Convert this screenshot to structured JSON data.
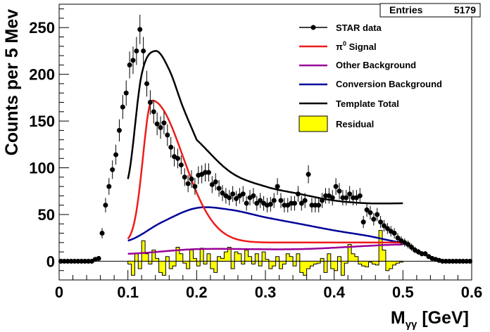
{
  "chart_data": {
    "type": "line",
    "title": "",
    "xlabel": "M",
    "xlabel_sub": "γγ",
    "xlabel_unit": " [GeV]",
    "ylabel": "Counts per 5 Mev",
    "xlim": [
      0,
      0.6
    ],
    "ylim": [
      -20,
      275
    ],
    "x_ticks": [
      0,
      0.1,
      0.2,
      0.3,
      0.4,
      0.5,
      0.6
    ],
    "x_tick_labels": [
      "0",
      "0.1",
      "0.2",
      "0.3",
      "0.4",
      "0.5",
      "0.6"
    ],
    "y_ticks": [
      0,
      50,
      100,
      150,
      200,
      250
    ],
    "y_tick_labels": [
      "0",
      "50",
      "100",
      "150",
      "200",
      "250"
    ],
    "grid": false,
    "legend_position": "top-right",
    "stats": {
      "label": "Entries",
      "value": "5179"
    },
    "legend": [
      {
        "label": "STAR data",
        "kind": "marker",
        "color": "#000000"
      },
      {
        "label": "π",
        "sup": "0",
        "suffix": " Signal",
        "kind": "line",
        "color": "#ee1c1c"
      },
      {
        "label": "Other Background",
        "kind": "line",
        "color": "#990099"
      },
      {
        "label": "Conversion Background",
        "kind": "line",
        "color": "#000099"
      },
      {
        "label": "Template Total",
        "kind": "line",
        "color": "#000000"
      },
      {
        "label": "Residual",
        "kind": "fill",
        "color": "#ffff00"
      }
    ],
    "data_points": {
      "name": "STAR data",
      "bin_width": 0.005,
      "x": [
        0.0025,
        0.0075,
        0.0125,
        0.0175,
        0.0225,
        0.0275,
        0.0325,
        0.0375,
        0.0425,
        0.0475,
        0.0525,
        0.0575,
        0.0625,
        0.0675,
        0.0725,
        0.0775,
        0.0825,
        0.0875,
        0.0925,
        0.0975,
        0.1025,
        0.1075,
        0.1125,
        0.1175,
        0.1225,
        0.1275,
        0.1325,
        0.1375,
        0.1425,
        0.1475,
        0.1525,
        0.1575,
        0.1625,
        0.1675,
        0.1725,
        0.1775,
        0.1825,
        0.1875,
        0.1925,
        0.1975,
        0.2025,
        0.2075,
        0.2125,
        0.2175,
        0.2225,
        0.2275,
        0.2325,
        0.2375,
        0.2425,
        0.2475,
        0.2525,
        0.2575,
        0.2625,
        0.2675,
        0.2725,
        0.2775,
        0.2825,
        0.2875,
        0.2925,
        0.2975,
        0.3025,
        0.3075,
        0.3125,
        0.3175,
        0.3225,
        0.3275,
        0.3325,
        0.3375,
        0.3425,
        0.3475,
        0.3525,
        0.3575,
        0.3625,
        0.3675,
        0.3725,
        0.3775,
        0.3825,
        0.3875,
        0.3925,
        0.3975,
        0.4025,
        0.4075,
        0.4125,
        0.4175,
        0.4225,
        0.4275,
        0.4325,
        0.4375,
        0.4425,
        0.4475,
        0.4525,
        0.4575,
        0.4625,
        0.4675,
        0.4725,
        0.4775,
        0.4825,
        0.4875,
        0.4925,
        0.4975,
        0.5025,
        0.5075,
        0.5125,
        0.5175,
        0.5225,
        0.5275,
        0.5325,
        0.5375,
        0.5425,
        0.5475,
        0.5525,
        0.5575,
        0.5625,
        0.5675,
        0.5725,
        0.5775,
        0.5825,
        0.5875,
        0.5925,
        0.5975
      ],
      "y": [
        0,
        0,
        0,
        0,
        0,
        0,
        0,
        0,
        0,
        0,
        2,
        3,
        30,
        60,
        80,
        98,
        114,
        140,
        165,
        180,
        210,
        215,
        225,
        248,
        225,
        190,
        170,
        160,
        147,
        143,
        148,
        135,
        122,
        112,
        110,
        103,
        90,
        83,
        88,
        80,
        92,
        93,
        95,
        95,
        82,
        85,
        78,
        73,
        70,
        68,
        72,
        67,
        70,
        72,
        62,
        68,
        70,
        62,
        65,
        62,
        60,
        61,
        65,
        80,
        65,
        60,
        60,
        62,
        62,
        72,
        62,
        65,
        93,
        60,
        60,
        60,
        65,
        70,
        70,
        68,
        80,
        75,
        68,
        68,
        72,
        68,
        68,
        70,
        42,
        55,
        52,
        45,
        50,
        42,
        38,
        35,
        32,
        30,
        25,
        22,
        20,
        18,
        15,
        12,
        10,
        8,
        8,
        5,
        3,
        2,
        1,
        0,
        0,
        0,
        0,
        0,
        0,
        0,
        0,
        0
      ]
    },
    "signal": {
      "name": "π0 Signal",
      "mu": 0.135,
      "sigma_left": 0.013,
      "sigma_right": 0.045,
      "amplitude": 152,
      "offset": 20,
      "xrange": [
        0.1,
        0.5
      ]
    },
    "other_background": {
      "name": "Other Background",
      "points": [
        [
          0.1,
          8
        ],
        [
          0.2,
          13
        ],
        [
          0.35,
          13
        ],
        [
          0.5,
          18
        ]
      ]
    },
    "conversion_background": {
      "name": "Conversion Background",
      "points": [
        [
          0.1,
          22
        ],
        [
          0.15,
          42
        ],
        [
          0.2,
          57
        ],
        [
          0.25,
          55
        ],
        [
          0.3,
          47
        ],
        [
          0.35,
          40
        ],
        [
          0.4,
          33
        ],
        [
          0.45,
          27
        ],
        [
          0.5,
          20
        ]
      ]
    },
    "template_total": {
      "name": "Template Total",
      "points": [
        [
          0.1,
          88
        ],
        [
          0.12,
          200
        ],
        [
          0.14,
          225
        ],
        [
          0.16,
          205
        ],
        [
          0.18,
          165
        ],
        [
          0.2,
          130
        ],
        [
          0.25,
          95
        ],
        [
          0.3,
          80
        ],
        [
          0.35,
          72
        ],
        [
          0.4,
          65
        ],
        [
          0.45,
          62
        ],
        [
          0.5,
          62
        ]
      ]
    },
    "residual": {
      "name": "Residual",
      "bin_width": 0.005,
      "x_start": 0.1,
      "values": [
        -3,
        -15,
        8,
        -8,
        22,
        8,
        -3,
        12,
        3,
        -12,
        -15,
        5,
        -8,
        -5,
        15,
        8,
        -2,
        -8,
        12,
        3,
        -5,
        14,
        -3,
        8,
        -8,
        -12,
        5,
        3,
        10,
        15,
        -8,
        10,
        8,
        -3,
        12,
        5,
        -3,
        8,
        -5,
        10,
        2,
        -8,
        -5,
        5,
        -8,
        -3,
        8,
        5,
        -5,
        8,
        -12,
        -15,
        -8,
        -5,
        -3,
        -2,
        3,
        -12,
        8,
        -8,
        -10,
        5,
        -15,
        -2,
        18,
        8,
        5,
        -3,
        -5,
        -6,
        -1,
        -3,
        -4,
        33,
        12,
        -10,
        -8,
        -4,
        -2,
        -1
      ]
    }
  }
}
